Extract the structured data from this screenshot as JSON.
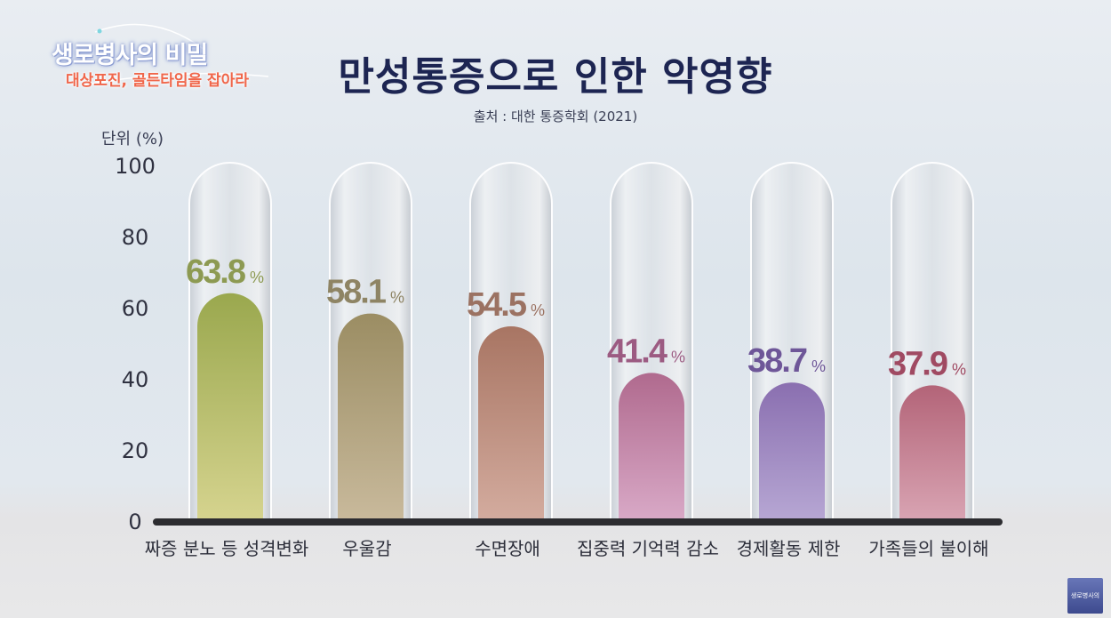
{
  "logo": {
    "title": "생로병사의 비밀",
    "subtitle": "대상포진, 골든타임을 잡아라"
  },
  "header": {
    "title": "만성통증으로 인한 악영향",
    "source": "출처 : 대한 통증학회 (2021)"
  },
  "watermark": {
    "label": "생로병사의 비밀"
  },
  "chart_data": {
    "type": "bar",
    "unit_label": "단위 (%)",
    "categories": [
      "짜증 분노 등 성격변화",
      "우울감",
      "수면장애",
      "집중력 기억력 감소",
      "경제활동 제한",
      "가족들의 불이해"
    ],
    "values": [
      63.8,
      58.1,
      54.5,
      41.4,
      38.7,
      37.9
    ],
    "value_suffix": "%",
    "ylim": [
      0,
      100
    ],
    "yticks": [
      0,
      20,
      40,
      60,
      80,
      100
    ],
    "bar_colors": [
      {
        "top": "#9aa84e",
        "bottom": "#d5d38e",
        "label": "#8d9a52"
      },
      {
        "top": "#9b8d63",
        "bottom": "#c8b99b",
        "label": "#8e8464"
      },
      {
        "top": "#a87563",
        "bottom": "#d3ab9e",
        "label": "#9b7262"
      },
      {
        "top": "#b06a8e",
        "bottom": "#d8a8c6",
        "label": "#9c5b82"
      },
      {
        "top": "#8a6fb0",
        "bottom": "#b6a6d3",
        "label": "#6e5698"
      },
      {
        "top": "#b36478",
        "bottom": "#d8a3b2",
        "label": "#a04a62"
      }
    ],
    "grid": false,
    "legend": "none"
  }
}
